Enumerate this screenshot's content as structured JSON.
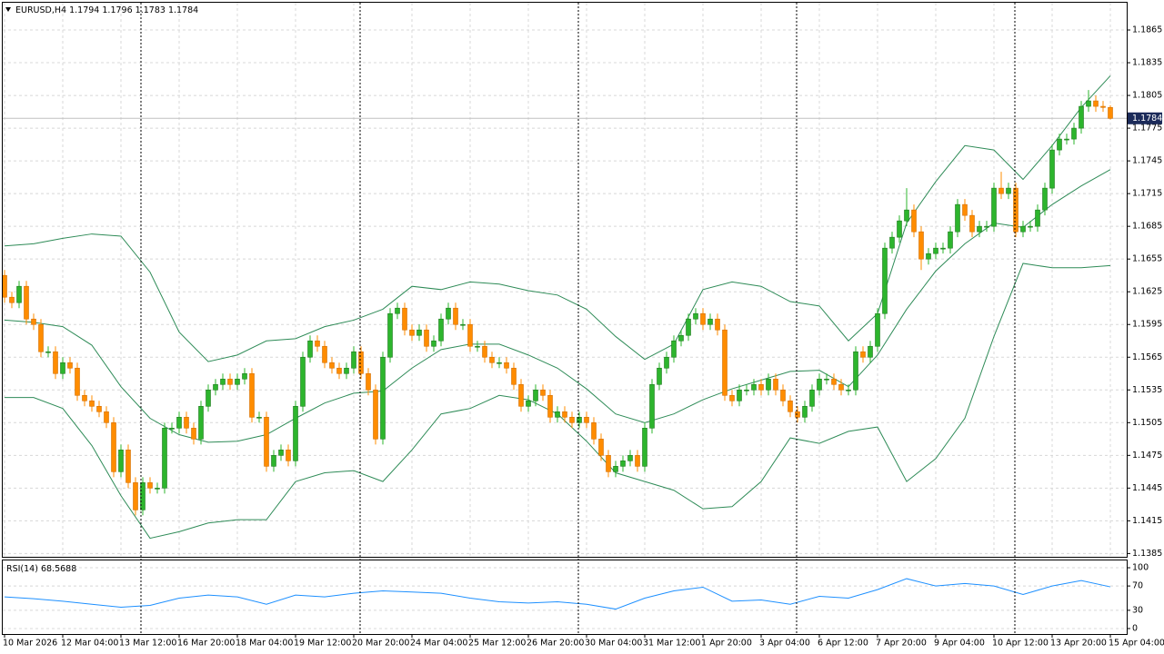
{
  "chart_data": [
    {
      "type": "candlestick",
      "title": "EURUSD,H4",
      "categories": [
        "10 Mar 2026",
        null,
        null,
        null,
        null,
        null,
        null,
        null,
        "12 Mar 04:00",
        null,
        null,
        null,
        null,
        null,
        null,
        null,
        "13 Mar 12:00",
        null,
        null,
        null,
        null,
        null,
        null,
        null,
        "16 Mar 20:00",
        null,
        null,
        null,
        null,
        null,
        null,
        null,
        "18 Mar 04:00",
        null,
        null,
        null,
        null,
        null,
        null,
        null,
        "19 Mar 12:00",
        null,
        null,
        null,
        null,
        null,
        null,
        null,
        "20 Mar 20:00",
        null,
        null,
        null,
        null,
        null,
        null,
        null,
        "24 Mar 04:00",
        null,
        null,
        null,
        null,
        null,
        null,
        null,
        "25 Mar 12:00",
        null,
        null,
        null,
        null,
        null,
        null,
        null,
        "26 Mar 20:00",
        null,
        null,
        null,
        null,
        null,
        null,
        null,
        "30 Mar 04:00",
        null,
        null,
        null,
        null,
        null,
        null,
        null,
        "31 Mar 12:00",
        null,
        null,
        null,
        null,
        null,
        null,
        null,
        "1 Apr 20:00",
        null,
        null,
        null,
        null,
        null,
        null,
        null,
        "3 Apr 04:00",
        null,
        null,
        null,
        null,
        null,
        null,
        null,
        "6 Apr 12:00",
        null,
        null,
        null,
        null,
        null,
        null,
        null,
        "7 Apr 20:00",
        null,
        null,
        null,
        null,
        null,
        null,
        null,
        "9 Apr 04:00",
        null,
        null,
        null,
        null,
        null,
        null,
        null,
        "10 Apr 12:00",
        null,
        null,
        null,
        null,
        null,
        null,
        null,
        "13 Apr 20:00",
        null,
        null,
        null,
        null,
        null,
        null,
        null,
        "15 Apr 04:00"
      ],
      "open": [
        1.164,
        1.162,
        1.1615,
        1.163,
        1.16,
        1.1595,
        1.157,
        1.157,
        1.155,
        1.156,
        1.1555,
        1.153,
        1.1525,
        1.152,
        1.1515,
        1.1505,
        1.146,
        1.148,
        1.145,
        1.1425,
        1.145,
        1.1445,
        1.1445,
        1.15,
        1.15,
        1.151,
        1.15,
        1.149,
        1.152,
        1.1535,
        1.154,
        1.1545,
        1.154,
        1.1545,
        1.155,
        1.151,
        1.151,
        1.1465,
        1.1475,
        1.148,
        1.147,
        1.152,
        1.1565,
        1.158,
        1.1575,
        1.156,
        1.1555,
        1.155,
        1.1555,
        1.157,
        1.155,
        1.1535,
        1.149,
        1.1565,
        1.1605,
        1.161,
        1.159,
        1.1585,
        1.159,
        1.1575,
        1.158,
        1.16,
        1.161,
        1.1595,
        1.1595,
        1.1575,
        1.1575,
        1.1565,
        1.156,
        1.156,
        1.1555,
        1.154,
        1.152,
        1.1525,
        1.1535,
        1.153,
        1.151,
        1.1515,
        1.151,
        1.1505,
        1.151,
        1.1505,
        1.149,
        1.1475,
        1.146,
        1.1465,
        1.147,
        1.1475,
        1.1465,
        1.15,
        1.154,
        1.1555,
        1.1565,
        1.158,
        1.1585,
        1.16,
        1.1605,
        1.1595,
        1.16,
        1.159,
        1.153,
        1.1525,
        1.1535,
        1.1535,
        1.154,
        1.1535,
        1.1545,
        1.1535,
        1.1525,
        1.1515,
        1.151,
        1.152,
        1.1535,
        1.1545,
        1.1545,
        1.154,
        1.1535,
        1.1535,
        1.157,
        1.1565,
        1.1575,
        1.1605,
        1.1665,
        1.1675,
        1.169,
        1.17,
        1.168,
        1.1655,
        1.166,
        1.1665,
        1.1665,
        1.168,
        1.1705,
        1.1695,
        1.168,
        1.1685,
        1.1685,
        1.172,
        1.1715,
        1.172,
        1.168,
        1.1685,
        1.1685,
        1.17,
        1.172,
        1.1755,
        1.1765,
        1.1765,
        1.1775,
        1.1795,
        1.18,
        1.1795,
        1.1794
      ],
      "high": [
        1.1645,
        1.1625,
        1.1635,
        1.1635,
        1.1605,
        1.16,
        1.1575,
        1.1575,
        1.1565,
        1.1565,
        1.156,
        1.1535,
        1.153,
        1.1525,
        1.152,
        1.151,
        1.1485,
        1.1485,
        1.1455,
        1.1455,
        1.1455,
        1.145,
        1.1505,
        1.1505,
        1.1515,
        1.1515,
        1.1505,
        1.1525,
        1.154,
        1.1545,
        1.155,
        1.155,
        1.155,
        1.1555,
        1.1555,
        1.1515,
        1.1515,
        1.148,
        1.1485,
        1.1485,
        1.1525,
        1.157,
        1.1585,
        1.1585,
        1.158,
        1.1565,
        1.156,
        1.156,
        1.1575,
        1.1575,
        1.1555,
        1.154,
        1.157,
        1.161,
        1.1615,
        1.1615,
        1.1595,
        1.1595,
        1.1595,
        1.1585,
        1.1605,
        1.1615,
        1.1615,
        1.16,
        1.16,
        1.158,
        1.158,
        1.157,
        1.1565,
        1.1565,
        1.156,
        1.1545,
        1.153,
        1.154,
        1.154,
        1.1535,
        1.152,
        1.152,
        1.1515,
        1.1515,
        1.1515,
        1.151,
        1.1495,
        1.148,
        1.147,
        1.1475,
        1.148,
        1.148,
        1.1505,
        1.1545,
        1.156,
        1.157,
        1.1585,
        1.159,
        1.1605,
        1.161,
        1.161,
        1.1605,
        1.1605,
        1.1595,
        1.1535,
        1.154,
        1.154,
        1.1545,
        1.1545,
        1.155,
        1.155,
        1.154,
        1.153,
        1.152,
        1.1525,
        1.154,
        1.155,
        1.155,
        1.155,
        1.1545,
        1.154,
        1.1575,
        1.1575,
        1.158,
        1.161,
        1.167,
        1.168,
        1.1695,
        1.172,
        1.1705,
        1.1685,
        1.1665,
        1.167,
        1.167,
        1.1685,
        1.171,
        1.171,
        1.17,
        1.169,
        1.169,
        1.1725,
        1.1735,
        1.1725,
        1.1725,
        1.169,
        1.169,
        1.1705,
        1.1725,
        1.176,
        1.177,
        1.177,
        1.178,
        1.18,
        1.181,
        1.1805,
        1.18,
        1.1796
      ],
      "low": [
        1.1615,
        1.161,
        1.161,
        1.1595,
        1.159,
        1.1565,
        1.1565,
        1.1545,
        1.1545,
        1.155,
        1.1525,
        1.152,
        1.1515,
        1.151,
        1.15,
        1.1455,
        1.1455,
        1.1445,
        1.142,
        1.142,
        1.144,
        1.144,
        1.144,
        1.1495,
        1.1495,
        1.1495,
        1.1485,
        1.1485,
        1.1515,
        1.153,
        1.1535,
        1.1535,
        1.1535,
        1.154,
        1.1505,
        1.1505,
        1.146,
        1.146,
        1.147,
        1.1465,
        1.1465,
        1.1515,
        1.156,
        1.157,
        1.1555,
        1.155,
        1.1545,
        1.1545,
        1.155,
        1.1545,
        1.153,
        1.1485,
        1.1485,
        1.156,
        1.16,
        1.1585,
        1.158,
        1.158,
        1.157,
        1.157,
        1.1575,
        1.1595,
        1.159,
        1.159,
        1.157,
        1.157,
        1.156,
        1.1555,
        1.1555,
        1.155,
        1.1535,
        1.1515,
        1.1515,
        1.152,
        1.1525,
        1.1505,
        1.1505,
        1.1505,
        1.15,
        1.15,
        1.15,
        1.1485,
        1.147,
        1.1455,
        1.1455,
        1.146,
        1.1465,
        1.146,
        1.146,
        1.1495,
        1.1535,
        1.155,
        1.156,
        1.1575,
        1.158,
        1.1595,
        1.159,
        1.159,
        1.1585,
        1.1525,
        1.152,
        1.152,
        1.153,
        1.153,
        1.153,
        1.153,
        1.153,
        1.152,
        1.151,
        1.1505,
        1.1505,
        1.1515,
        1.153,
        1.154,
        1.1535,
        1.153,
        1.153,
        1.153,
        1.156,
        1.156,
        1.157,
        1.16,
        1.166,
        1.167,
        1.1685,
        1.1675,
        1.1645,
        1.165,
        1.1655,
        1.166,
        1.166,
        1.1675,
        1.169,
        1.1675,
        1.1675,
        1.168,
        1.168,
        1.171,
        1.171,
        1.1675,
        1.1675,
        1.168,
        1.168,
        1.1695,
        1.1715,
        1.175,
        1.176,
        1.176,
        1.177,
        1.179,
        1.179,
        1.179,
        1.1783
      ],
      "close": [
        1.162,
        1.1615,
        1.163,
        1.16,
        1.1595,
        1.157,
        1.157,
        1.155,
        1.156,
        1.1555,
        1.153,
        1.1525,
        1.152,
        1.1515,
        1.1505,
        1.146,
        1.148,
        1.145,
        1.1425,
        1.145,
        1.1445,
        1.1445,
        1.15,
        1.15,
        1.151,
        1.15,
        1.149,
        1.152,
        1.1535,
        1.154,
        1.1545,
        1.154,
        1.1545,
        1.155,
        1.151,
        1.151,
        1.1465,
        1.1475,
        1.148,
        1.147,
        1.152,
        1.1565,
        1.158,
        1.1575,
        1.156,
        1.1555,
        1.155,
        1.1555,
        1.157,
        1.155,
        1.1535,
        1.149,
        1.1565,
        1.1605,
        1.161,
        1.159,
        1.1585,
        1.159,
        1.1575,
        1.158,
        1.16,
        1.161,
        1.1595,
        1.1595,
        1.1575,
        1.1575,
        1.1565,
        1.156,
        1.156,
        1.1555,
        1.154,
        1.152,
        1.1525,
        1.1535,
        1.153,
        1.151,
        1.1515,
        1.151,
        1.1505,
        1.151,
        1.1505,
        1.149,
        1.1475,
        1.146,
        1.1465,
        1.147,
        1.1475,
        1.1465,
        1.15,
        1.154,
        1.1555,
        1.1565,
        1.158,
        1.1585,
        1.16,
        1.1605,
        1.1595,
        1.16,
        1.159,
        1.153,
        1.1525,
        1.1535,
        1.1535,
        1.154,
        1.1535,
        1.1545,
        1.1535,
        1.1525,
        1.1515,
        1.151,
        1.152,
        1.1535,
        1.1545,
        1.1545,
        1.154,
        1.1535,
        1.1535,
        1.157,
        1.1565,
        1.1575,
        1.1605,
        1.1665,
        1.1675,
        1.169,
        1.17,
        1.168,
        1.1655,
        1.166,
        1.1665,
        1.1665,
        1.168,
        1.1705,
        1.1695,
        1.168,
        1.1685,
        1.1685,
        1.172,
        1.1715,
        1.172,
        1.168,
        1.1685,
        1.1685,
        1.17,
        1.172,
        1.1755,
        1.1765,
        1.1765,
        1.1775,
        1.1795,
        1.18,
        1.1795,
        1.1794,
        1.1784
      ],
      "up_color": "#2db52d",
      "down_color": "#ff8c00",
      "ylim": [
        1.1382,
        1.189
      ],
      "yticks": [
        1.1865,
        1.1835,
        1.1805,
        1.1775,
        1.1745,
        1.1715,
        1.1685,
        1.1655,
        1.1625,
        1.1595,
        1.1565,
        1.1535,
        1.1505,
        1.1475,
        1.1445,
        1.1415,
        1.1385
      ],
      "grid": true,
      "series": [
        {
          "color": "#2e8b57",
          "x": [
            0,
            4,
            8,
            12,
            16,
            20,
            24,
            28,
            32,
            36,
            40,
            44,
            48,
            52,
            56,
            60,
            64,
            68,
            72,
            76,
            80,
            84,
            88,
            92,
            96,
            100,
            104,
            108,
            112,
            116,
            120,
            124,
            128,
            132,
            136,
            140,
            144,
            148,
            152
          ],
          "values": [
            1.1667,
            1.1669,
            1.1674,
            1.1678,
            1.1676,
            1.1643,
            1.1588,
            1.1561,
            1.1567,
            1.158,
            1.1582,
            1.1593,
            1.1599,
            1.1609,
            1.163,
            1.1627,
            1.1634,
            1.1632,
            1.1626,
            1.1622,
            1.1609,
            1.1584,
            1.1563,
            1.1577,
            1.1627,
            1.1634,
            1.163,
            1.1616,
            1.1612,
            1.158,
            1.1605,
            1.1688,
            1.1726,
            1.1759,
            1.1755,
            1.1728,
            1.1759,
            1.1794,
            1.1823
          ]
        },
        {
          "color": "#2e8b57",
          "x": [
            0,
            4,
            8,
            12,
            16,
            20,
            24,
            28,
            32,
            36,
            40,
            44,
            48,
            52,
            56,
            60,
            64,
            68,
            72,
            76,
            80,
            84,
            88,
            92,
            96,
            100,
            104,
            108,
            112,
            116,
            120,
            124,
            128,
            132,
            136,
            140,
            144,
            148,
            152
          ],
          "values": [
            1.1599,
            1.1597,
            1.1593,
            1.1576,
            1.1538,
            1.1509,
            1.1494,
            1.1487,
            1.1488,
            1.1494,
            1.1509,
            1.1523,
            1.1532,
            1.1534,
            1.1555,
            1.1572,
            1.1577,
            1.1577,
            1.1567,
            1.1555,
            1.1536,
            1.1513,
            1.1505,
            1.1513,
            1.1526,
            1.1536,
            1.1544,
            1.1552,
            1.1553,
            1.1538,
            1.1567,
            1.1609,
            1.1644,
            1.1669,
            1.1688,
            1.1684,
            1.1705,
            1.1722,
            1.1737
          ]
        },
        {
          "color": "#2e8b57",
          "x": [
            0,
            4,
            8,
            12,
            16,
            20,
            24,
            28,
            32,
            36,
            40,
            44,
            48,
            52,
            56,
            60,
            64,
            68,
            72,
            76,
            80,
            84,
            88,
            92,
            96,
            100,
            104,
            108,
            112,
            116,
            120,
            124,
            128,
            132,
            136,
            140,
            144,
            148,
            152
          ],
          "values": [
            1.1528,
            1.1528,
            1.1518,
            1.1484,
            1.1438,
            1.1399,
            1.1405,
            1.1413,
            1.1416,
            1.1416,
            1.1451,
            1.1459,
            1.1461,
            1.1451,
            1.148,
            1.1513,
            1.1518,
            1.153,
            1.1526,
            1.1513,
            1.1488,
            1.1459,
            1.1451,
            1.1443,
            1.1426,
            1.1428,
            1.1451,
            1.1491,
            1.1486,
            1.1497,
            1.1501,
            1.1451,
            1.1472,
            1.1509,
            1.1584,
            1.1651,
            1.1647,
            1.1647,
            1.1649
          ]
        }
      ]
    },
    {
      "type": "line",
      "title": "RSI(14)",
      "color": "#1e90ff",
      "x": [
        0,
        4,
        8,
        12,
        16,
        20,
        24,
        28,
        32,
        36,
        40,
        44,
        48,
        52,
        56,
        60,
        64,
        68,
        72,
        76,
        80,
        84,
        88,
        92,
        96,
        100,
        104,
        108,
        112,
        116,
        120,
        124,
        128,
        132,
        136,
        140,
        144,
        148,
        152
      ],
      "values": [
        52,
        49,
        45,
        40,
        35,
        38,
        50,
        55,
        52,
        40,
        55,
        52,
        58,
        62,
        60,
        58,
        50,
        44,
        42,
        44,
        40,
        32,
        50,
        62,
        68,
        45,
        47,
        40,
        53,
        50,
        64,
        82,
        70,
        74,
        70,
        56,
        70,
        79,
        68.5688
      ],
      "ylim": [
        -9,
        112
      ],
      "yticks": [
        100,
        70,
        30,
        0
      ]
    }
  ]
}
